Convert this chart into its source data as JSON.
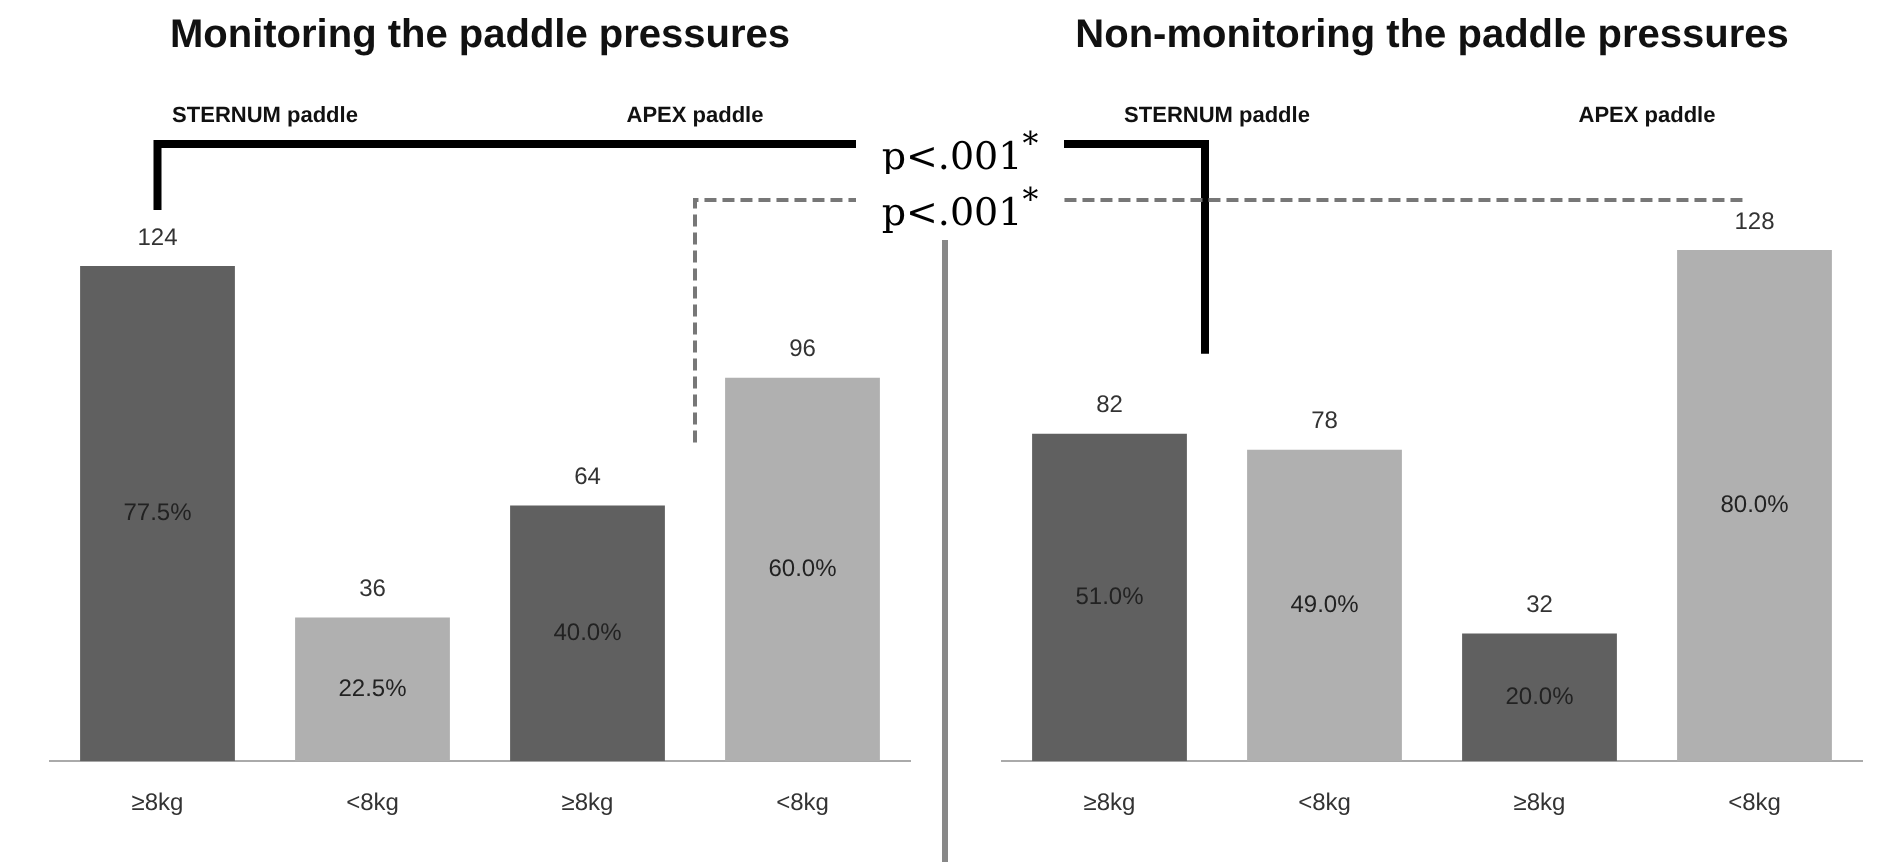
{
  "chart_data": [
    {
      "type": "bar",
      "title": "Monitoring the paddle pressures",
      "categories": [
        "≥8kg",
        "<8kg",
        "≥8kg",
        "<8kg"
      ],
      "values": [
        124,
        36,
        64,
        96
      ],
      "colors": [
        "#606060",
        "#b0b0b0",
        "#606060",
        "#b0b0b0"
      ],
      "data_labels": true,
      "grid": false,
      "legend": false,
      "tick_labels": "x",
      "annotations": [
        "p<.001$^{*}$",
        "p<.001$^{*}$",
        "STERNUM paddle",
        "APEX paddle",
        "77.5%",
        "22.5%",
        "40.0%",
        "60.0%"
      ]
    },
    {
      "type": "bar",
      "title": "Non-monitoring the paddle pressures",
      "categories": [
        "≥8kg",
        "<8kg",
        "≥8kg",
        "<8kg"
      ],
      "values": [
        82,
        78,
        32,
        128
      ],
      "colors": [
        "#606060",
        "#b0b0b0",
        "#606060",
        "#b0b0b0"
      ],
      "data_labels": true,
      "grid": false,
      "legend": false,
      "tick_labels": "x",
      "annotations": [
        "STERNUM paddle",
        "APEX paddle",
        "51.0%",
        "49.0%",
        "20.0%",
        "80.0%"
      ]
    }
  ]
}
